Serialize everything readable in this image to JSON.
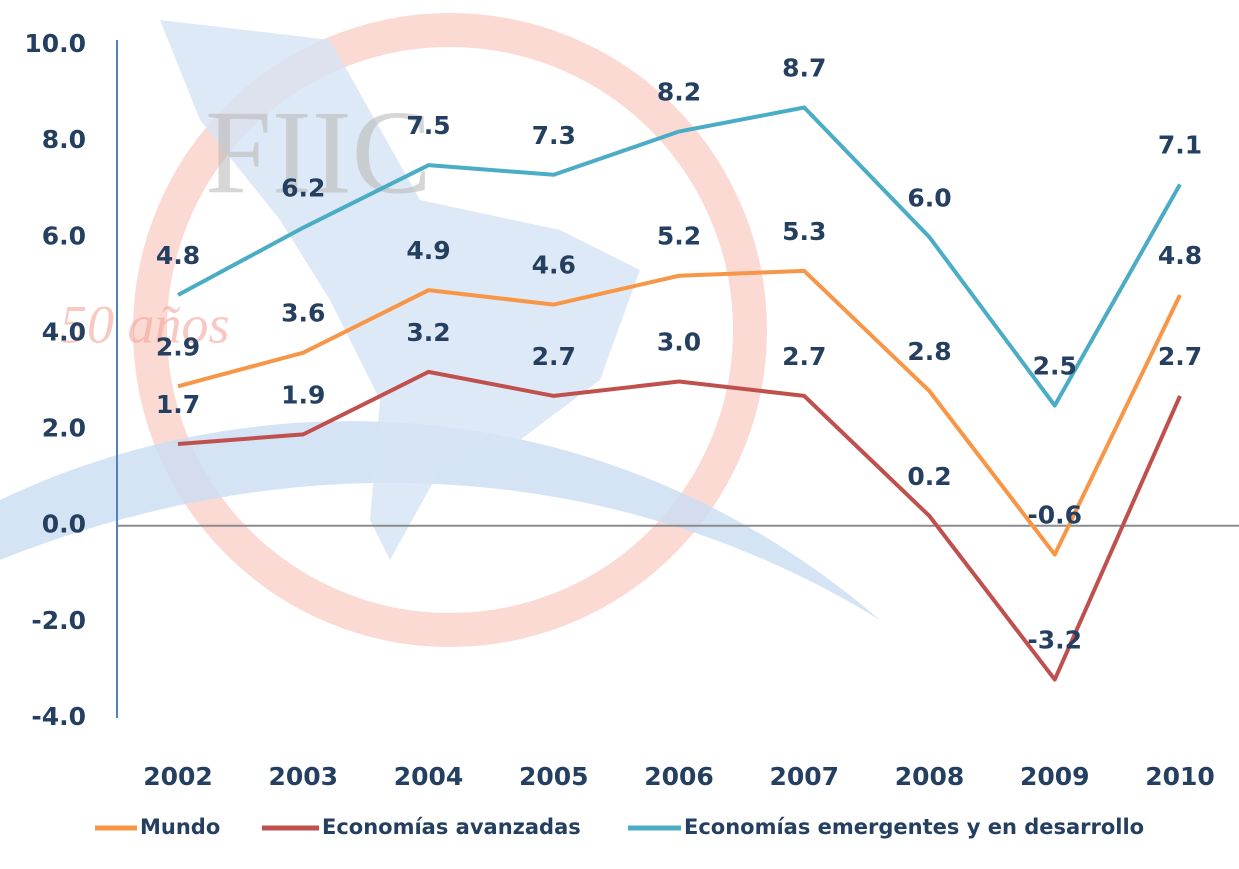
{
  "watermark": {
    "logo": "FIIC",
    "tagline": "50 años"
  },
  "chart_data": {
    "type": "line",
    "categories": [
      "2002",
      "2003",
      "2004",
      "2005",
      "2006",
      "2007",
      "2008",
      "2009",
      "2010"
    ],
    "series": [
      {
        "name": "Mundo",
        "color": "#f79646",
        "values": [
          2.9,
          3.6,
          4.9,
          4.6,
          5.2,
          5.3,
          2.8,
          -0.6,
          4.8
        ],
        "value_labels": [
          "2.9",
          "3.6",
          "4.9",
          "4.6",
          "5.2",
          "5.3",
          "2.8",
          "-0.6",
          "4.8"
        ]
      },
      {
        "name": "Economías avanzadas",
        "color": "#c0504d",
        "values": [
          1.7,
          1.9,
          3.2,
          2.7,
          3.0,
          2.7,
          0.2,
          -3.2,
          2.7
        ],
        "value_labels": [
          "1.7",
          "1.9",
          "3.2",
          "2.7",
          "3.0",
          "2.7",
          "0.2",
          "-3.2",
          "2.7"
        ]
      },
      {
        "name": "Economías emergentes y en desarrollo",
        "color": "#4bacc6",
        "values": [
          4.8,
          6.2,
          7.5,
          7.3,
          8.2,
          8.7,
          6.0,
          2.5,
          7.1
        ],
        "value_labels": [
          "4.8",
          "6.2",
          "7.5",
          "7.3",
          "8.2",
          "8.7",
          "6.0",
          "2.5",
          "7.1"
        ]
      }
    ],
    "ylim": [
      -4,
      10
    ],
    "yticks": [
      {
        "value": -4,
        "label": "-4.0"
      },
      {
        "value": -2,
        "label": "-2.0"
      },
      {
        "value": 0,
        "label": "0.0"
      },
      {
        "value": 2,
        "label": "2.0"
      },
      {
        "value": 4,
        "label": "4.0"
      },
      {
        "value": 6,
        "label": "6.0"
      },
      {
        "value": 8,
        "label": "8.0"
      },
      {
        "value": 10,
        "label": "10.0"
      }
    ],
    "grid": false,
    "legend": "bottom"
  }
}
